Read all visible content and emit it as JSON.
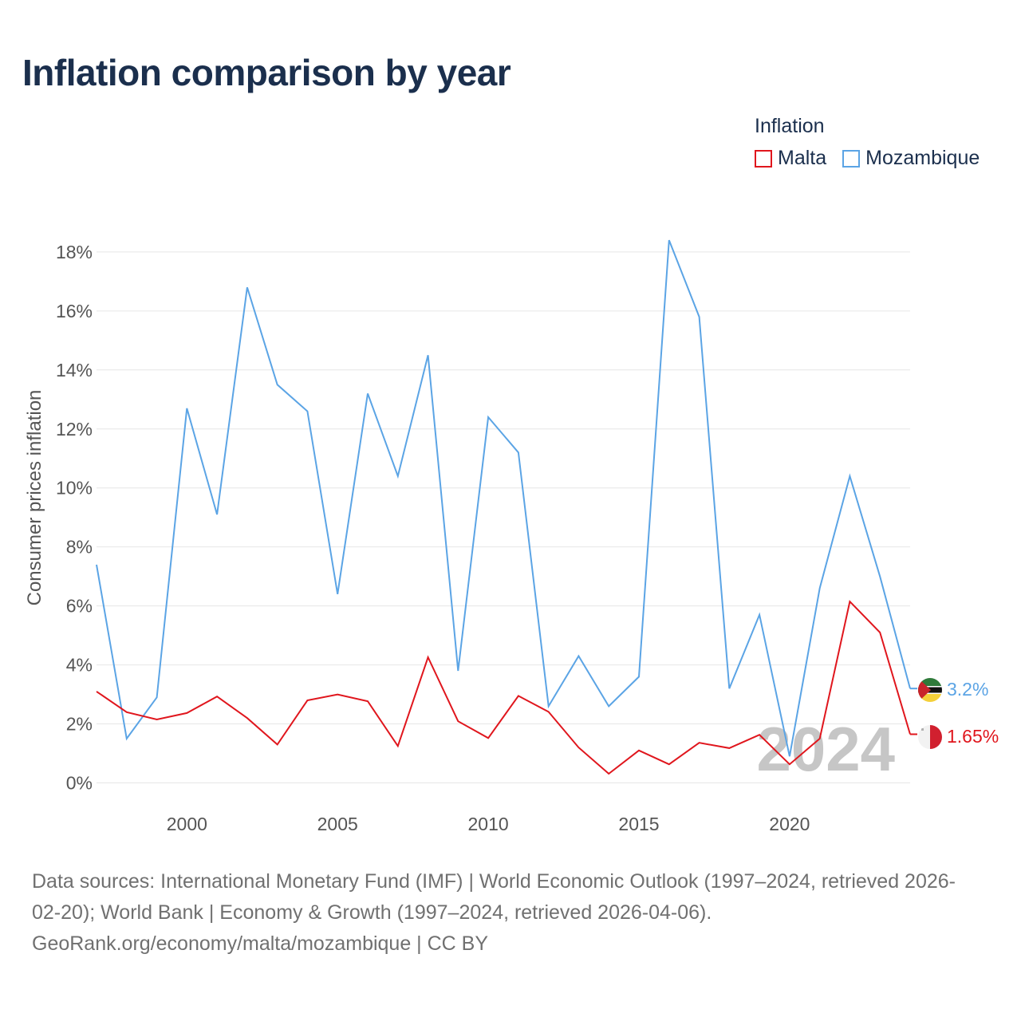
{
  "page": {
    "title": "Inflation comparison by year"
  },
  "legend": {
    "title": "Inflation",
    "items": [
      {
        "label": "Malta",
        "color": "#e0161d"
      },
      {
        "label": "Mozambique",
        "color": "#5ba4e5"
      }
    ]
  },
  "chart_data": {
    "type": "line",
    "title": "Inflation comparison by year",
    "xlabel": "",
    "ylabel": "Consumer prices inflation",
    "x": [
      1997,
      1998,
      1999,
      2000,
      2001,
      2002,
      2003,
      2004,
      2005,
      2006,
      2007,
      2008,
      2009,
      2010,
      2011,
      2012,
      2013,
      2014,
      2015,
      2016,
      2017,
      2018,
      2019,
      2020,
      2021,
      2022,
      2023,
      2024
    ],
    "xlim": [
      1997,
      2024
    ],
    "ylim": [
      -0.5,
      18.7
    ],
    "x_ticks": [
      {
        "value": 2000,
        "label": "2000"
      },
      {
        "value": 2005,
        "label": "2005"
      },
      {
        "value": 2010,
        "label": "2010"
      },
      {
        "value": 2015,
        "label": "2015"
      },
      {
        "value": 2020,
        "label": "2020"
      }
    ],
    "y_ticks": [
      {
        "value": 0,
        "label": "0%"
      },
      {
        "value": 2,
        "label": "2%"
      },
      {
        "value": 4,
        "label": "4%"
      },
      {
        "value": 6,
        "label": "6%"
      },
      {
        "value": 8,
        "label": "8%"
      },
      {
        "value": 10,
        "label": "10%"
      },
      {
        "value": 12,
        "label": "12%"
      },
      {
        "value": 14,
        "label": "14%"
      },
      {
        "value": 16,
        "label": "16%"
      },
      {
        "value": 18,
        "label": "18%"
      }
    ],
    "grid": true,
    "legend_position": "top-right",
    "watermark": "2024",
    "series": [
      {
        "name": "Mozambique",
        "color": "#5ba4e5",
        "values": [
          7.4,
          1.5,
          2.9,
          12.7,
          9.1,
          16.8,
          13.5,
          12.6,
          6.4,
          13.2,
          10.4,
          14.5,
          3.8,
          12.4,
          11.2,
          2.6,
          4.3,
          2.6,
          3.6,
          18.4,
          15.8,
          3.2,
          5.7,
          0.9,
          6.6,
          10.4,
          7.0,
          3.2
        ],
        "end_label": "3.2%"
      },
      {
        "name": "Malta",
        "color": "#e0161d",
        "values": [
          3.1,
          2.4,
          2.15,
          2.37,
          2.93,
          2.2,
          1.3,
          2.8,
          3.0,
          2.77,
          1.25,
          4.26,
          2.09,
          1.52,
          2.95,
          2.41,
          1.2,
          0.31,
          1.1,
          0.63,
          1.36,
          1.18,
          1.63,
          0.63,
          1.5,
          6.15,
          5.1,
          1.65
        ],
        "end_label": "1.65%"
      }
    ]
  },
  "footer": {
    "line1": "Data sources: International Monetary Fund (IMF) | World Economic Outlook (1997–2024, retrieved 2026-",
    "line2": "02-20); World Bank | Economy & Growth (1997–2024, retrieved 2026-04-06).",
    "line3": "GeoRank.org/economy/malta/mozambique | CC BY"
  }
}
